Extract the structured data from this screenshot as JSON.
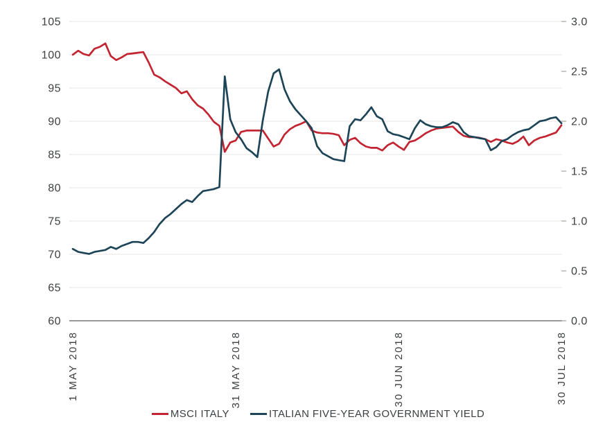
{
  "chart_data": {
    "type": "line",
    "title": "",
    "grid": true,
    "legend_position": "bottom",
    "left_axis": {
      "min": 60,
      "max": 105,
      "ticks": [
        105,
        100,
        95,
        90,
        85,
        80,
        75,
        70,
        65,
        60
      ]
    },
    "right_axis": {
      "min": 0.0,
      "max": 3.0,
      "ticks": [
        "3.0",
        "2.5",
        "2.0",
        "1.5",
        "1.0",
        "0.5",
        "0.0"
      ]
    },
    "x_ticks": [
      {
        "label": "1 MAY 2018",
        "day_index": 0
      },
      {
        "label": "31 MAY 2018",
        "day_index": 30
      },
      {
        "label": "30 JUN 2018",
        "day_index": 60
      },
      {
        "label": "30 JUL 2018",
        "day_index": 90
      }
    ],
    "x_total_days": 90,
    "series": [
      {
        "name": "MSCI ITALY",
        "axis": "left",
        "color": "#c22531",
        "values": [
          100.0,
          100.6,
          100.1,
          99.9,
          100.9,
          101.2,
          101.7,
          99.8,
          99.2,
          99.6,
          100.1,
          100.2,
          100.3,
          100.4,
          98.8,
          97.0,
          96.6,
          96.0,
          95.5,
          95.0,
          94.2,
          94.5,
          93.3,
          92.4,
          91.9,
          91.0,
          89.9,
          89.3,
          85.4,
          86.8,
          87.1,
          88.4,
          88.6,
          88.6,
          88.6,
          88.6,
          87.4,
          86.2,
          86.6,
          88.0,
          88.8,
          89.3,
          89.6,
          90.0,
          88.6,
          88.3,
          88.2,
          88.2,
          88.1,
          87.9,
          86.4,
          87.2,
          87.5,
          86.7,
          86.2,
          86.0,
          86.0,
          85.6,
          86.4,
          86.8,
          86.2,
          85.7,
          86.9,
          87.1,
          87.6,
          88.2,
          88.6,
          88.9,
          89.0,
          89.1,
          89.2,
          88.4,
          87.8,
          87.6,
          87.6,
          87.5,
          87.3,
          86.9,
          87.3,
          87.1,
          86.8,
          86.6,
          87.0,
          87.7,
          86.4,
          87.1,
          87.5,
          87.7,
          88.0,
          88.3,
          89.4
        ]
      },
      {
        "name": "ITALIAN FIVE-YEAR GOVERNMENT YIELD",
        "axis": "right",
        "color": "#1d4557",
        "values": [
          0.72,
          0.69,
          0.68,
          0.67,
          0.69,
          0.7,
          0.71,
          0.74,
          0.72,
          0.75,
          0.77,
          0.79,
          0.79,
          0.78,
          0.83,
          0.89,
          0.97,
          1.03,
          1.07,
          1.12,
          1.17,
          1.21,
          1.19,
          1.25,
          1.3,
          1.31,
          1.32,
          1.34,
          2.45,
          2.02,
          1.89,
          1.82,
          1.73,
          1.69,
          1.64,
          2.01,
          2.3,
          2.48,
          2.52,
          2.32,
          2.2,
          2.12,
          2.06,
          2.0,
          1.93,
          1.75,
          1.68,
          1.65,
          1.62,
          1.61,
          1.6,
          1.95,
          2.02,
          2.01,
          2.07,
          2.14,
          2.05,
          2.02,
          1.9,
          1.87,
          1.86,
          1.84,
          1.82,
          1.93,
          2.01,
          1.97,
          1.95,
          1.94,
          1.94,
          1.96,
          1.99,
          1.97,
          1.89,
          1.85,
          1.84,
          1.83,
          1.82,
          1.71,
          1.74,
          1.8,
          1.82,
          1.86,
          1.89,
          1.91,
          1.92,
          1.96,
          2.0,
          2.01,
          2.03,
          2.04,
          1.98
        ]
      }
    ],
    "colors": {
      "grid_line": "#e9e6e1",
      "x_axis_line": "#97999b",
      "tick_dash": "#b5b2ae",
      "label_text": "#3c3f41"
    }
  }
}
